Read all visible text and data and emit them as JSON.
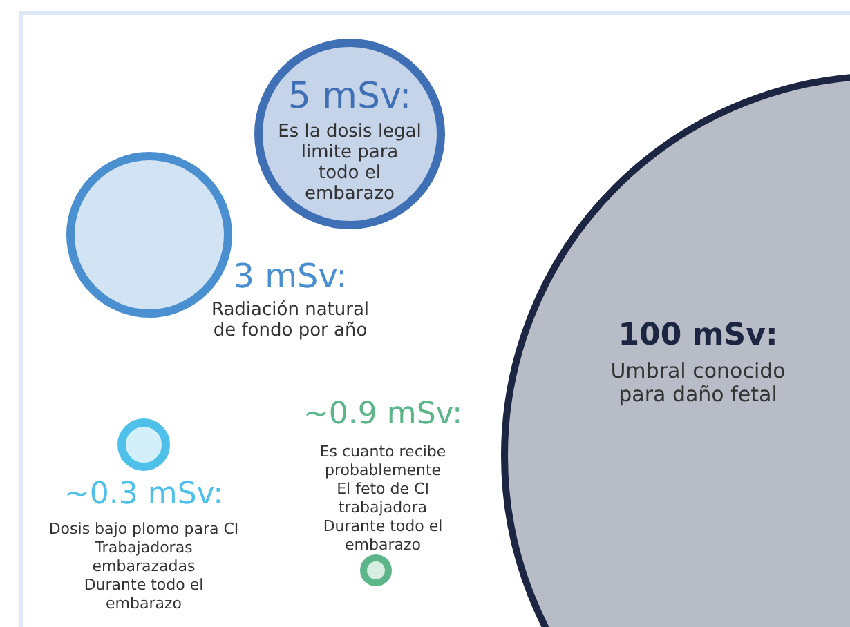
{
  "chart_data": {
    "type": "other",
    "categories": [
      "Es la dosis legal\nlimite para\ntodo el\nembarazo",
      "Radiación natural\nde fondo por año",
      "Dosis bajo plomo para CI\nTrabajadoras\nembarazadas\nDurante todo el\nembarazo",
      "Es cuanto recibe\nprobablemente\nEl feto de CI\ntrabajadora\nDurante todo el\nembarazo",
      "Umbral conocido\npara daño fetal"
    ],
    "values": [
      5,
      3,
      0.3,
      0.9,
      100
    ],
    "value_labels": [
      "5 mSv:",
      "3 mSv:",
      "~0.3 mSv:",
      "~0.9 mSv:",
      "100 mSv:"
    ],
    "colors": [
      "#3f6fb5",
      "#4a8fd0",
      "#4fc0ea",
      "#5db58a",
      "#1c2541"
    ]
  }
}
